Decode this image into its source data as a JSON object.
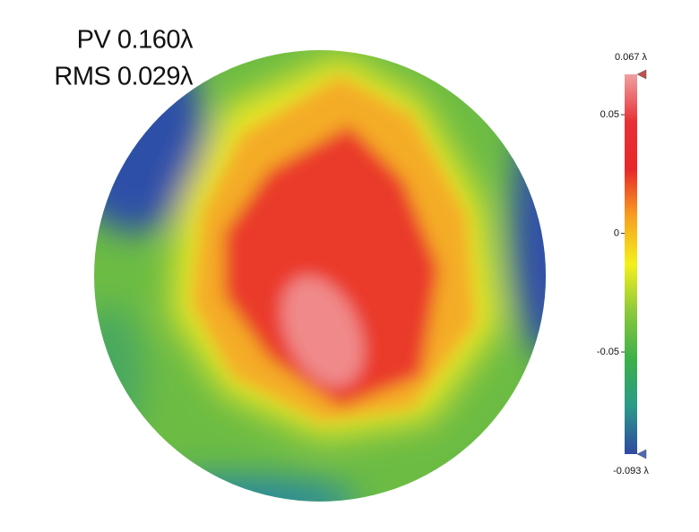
{
  "chart_data": {
    "type": "surface-map",
    "annotations": [
      "PV 0.160λ",
      "RMS 0.029λ"
    ],
    "colorbar": {
      "lim": [
        {
          "value": -0.093,
          "label": "-0.093 λ"
        },
        {
          "value": 0.067,
          "label": "0.067 λ"
        }
      ],
      "ticks": [
        0.05,
        0,
        -0.05
      ],
      "colors": [
        "#3048a0",
        "#2a9a8a",
        "#3cb04a",
        "#8cc83c",
        "#f4f01c",
        "#f8a020",
        "#e8282a",
        "#e83036",
        "#f0a0a0"
      ]
    }
  }
}
